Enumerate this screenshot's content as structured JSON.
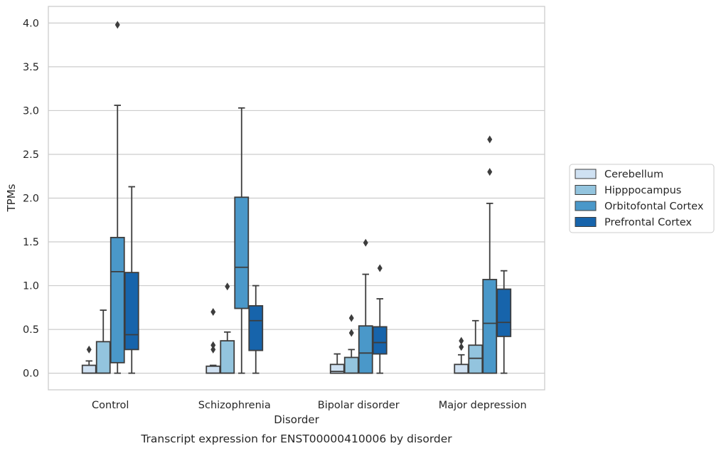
{
  "chart_data": {
    "type": "box",
    "title": "",
    "caption": "Transcript expression for ENST00000410006 by disorder",
    "xlabel": "Disorder",
    "ylabel": "TPMs",
    "ylim": [
      -0.19,
      4.19
    ],
    "yticks": [
      "0.0",
      "0.5",
      "1.0",
      "1.5",
      "2.0",
      "2.5",
      "3.0",
      "3.5",
      "4.0"
    ],
    "grid": true,
    "legend_position": "right",
    "categories": [
      "Control",
      "Schizophrenia",
      "Bipolar disorder",
      "Major depression"
    ],
    "series": [
      {
        "name": "Cerebellum",
        "color": "#cfe1f2",
        "boxes": [
          {
            "whislo": 0.0,
            "q1": 0.0,
            "med": 0.0,
            "q3": 0.09,
            "whishi": 0.14,
            "fliers": [
              0.27
            ]
          },
          {
            "whislo": 0.0,
            "q1": 0.0,
            "med": 0.0,
            "q3": 0.08,
            "whishi": 0.09,
            "fliers": [
              0.27,
              0.32,
              0.7
            ]
          },
          {
            "whislo": 0.0,
            "q1": 0.0,
            "med": 0.02,
            "q3": 0.1,
            "whishi": 0.22,
            "fliers": []
          },
          {
            "whislo": 0.0,
            "q1": 0.0,
            "med": 0.0,
            "q3": 0.1,
            "whishi": 0.21,
            "fliers": [
              0.3,
              0.37
            ]
          }
        ]
      },
      {
        "name": "Hipppocampus",
        "color": "#93c4de",
        "boxes": [
          {
            "whislo": 0.0,
            "q1": 0.0,
            "med": 0.0,
            "q3": 0.36,
            "whishi": 0.72,
            "fliers": []
          },
          {
            "whislo": 0.0,
            "q1": 0.0,
            "med": 0.0,
            "q3": 0.37,
            "whishi": 0.47,
            "fliers": [
              0.99
            ]
          },
          {
            "whislo": 0.0,
            "q1": 0.0,
            "med": 0.0,
            "q3": 0.18,
            "whishi": 0.27,
            "fliers": [
              0.46,
              0.63
            ]
          },
          {
            "whislo": 0.0,
            "q1": 0.0,
            "med": 0.17,
            "q3": 0.32,
            "whishi": 0.6,
            "fliers": []
          }
        ]
      },
      {
        "name": "Orbitofontal Cortex",
        "color": "#4a98c9",
        "boxes": [
          {
            "whislo": 0.0,
            "q1": 0.12,
            "med": 1.16,
            "q3": 1.55,
            "whishi": 3.06,
            "fliers": [
              3.98
            ]
          },
          {
            "whislo": 0.0,
            "q1": 0.74,
            "med": 1.21,
            "q3": 2.01,
            "whishi": 3.03,
            "fliers": []
          },
          {
            "whislo": 0.0,
            "q1": 0.0,
            "med": 0.23,
            "q3": 0.54,
            "whishi": 1.13,
            "fliers": [
              1.49
            ]
          },
          {
            "whislo": 0.0,
            "q1": 0.0,
            "med": 0.57,
            "q3": 1.07,
            "whishi": 1.94,
            "fliers": [
              2.3,
              2.67
            ]
          }
        ]
      },
      {
        "name": "Prefrontal Cortex",
        "color": "#1764ab",
        "boxes": [
          {
            "whislo": 0.0,
            "q1": 0.27,
            "med": 0.44,
            "q3": 1.15,
            "whishi": 2.13,
            "fliers": []
          },
          {
            "whislo": 0.0,
            "q1": 0.26,
            "med": 0.6,
            "q3": 0.77,
            "whishi": 1.0,
            "fliers": []
          },
          {
            "whislo": 0.0,
            "q1": 0.22,
            "med": 0.35,
            "q3": 0.53,
            "whishi": 0.85,
            "fliers": [
              1.2
            ]
          },
          {
            "whislo": 0.0,
            "q1": 0.42,
            "med": 0.58,
            "q3": 0.96,
            "whishi": 1.17,
            "fliers": []
          }
        ]
      }
    ]
  }
}
